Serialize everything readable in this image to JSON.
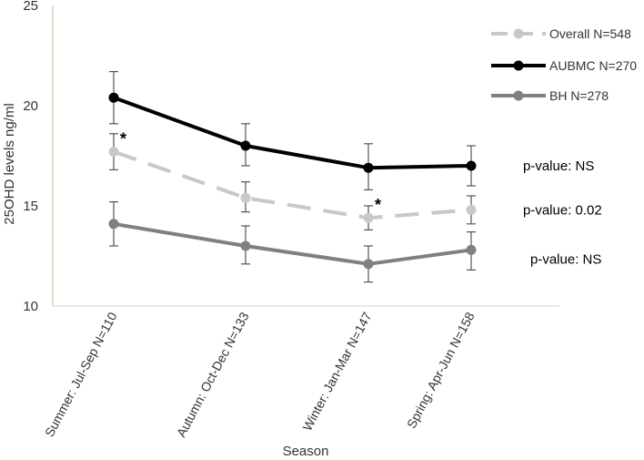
{
  "chart_data": {
    "type": "line",
    "title": "",
    "xlabel": "Season",
    "ylabel": "25OHD levels ng/ml",
    "ylim": [
      10,
      25
    ],
    "yticks": [
      10,
      15,
      20,
      25
    ],
    "categories": [
      "Summer: Jul-Sep N=110",
      "Autumn: Oct-Dec N=133",
      "Winter: Jan-Mar N=147",
      "Spring: Apr-Jun N=158"
    ],
    "series": [
      {
        "name": "Overall N=548",
        "color": "#c8c8c8",
        "style": "dashed",
        "values": [
          17.7,
          15.4,
          14.4,
          14.8
        ],
        "error_low": [
          16.8,
          14.7,
          13.8,
          14.1
        ],
        "error_high": [
          18.6,
          16.2,
          15.0,
          15.5
        ]
      },
      {
        "name": "AUBMC N=270",
        "color": "#000000",
        "style": "solid",
        "values": [
          20.4,
          18.0,
          16.9,
          17.0
        ],
        "error_low": [
          19.1,
          17.0,
          15.8,
          16.0
        ],
        "error_high": [
          21.7,
          19.1,
          18.1,
          18.0
        ]
      },
      {
        "name": "BH N=278",
        "color": "#808080",
        "style": "solid",
        "values": [
          14.1,
          13.0,
          12.1,
          12.8
        ],
        "error_low": [
          13.0,
          12.1,
          11.2,
          11.8
        ],
        "error_high": [
          15.2,
          14.0,
          13.0,
          13.7
        ]
      }
    ],
    "annotations": [
      {
        "text": "*",
        "series": 0,
        "index": 0
      },
      {
        "text": "*",
        "series": 0,
        "index": 2
      },
      {
        "text": "p-value: NS",
        "series": 1
      },
      {
        "text": "p-value: 0.02",
        "series": 0
      },
      {
        "text": "p-value: NS",
        "series": 2
      }
    ]
  }
}
